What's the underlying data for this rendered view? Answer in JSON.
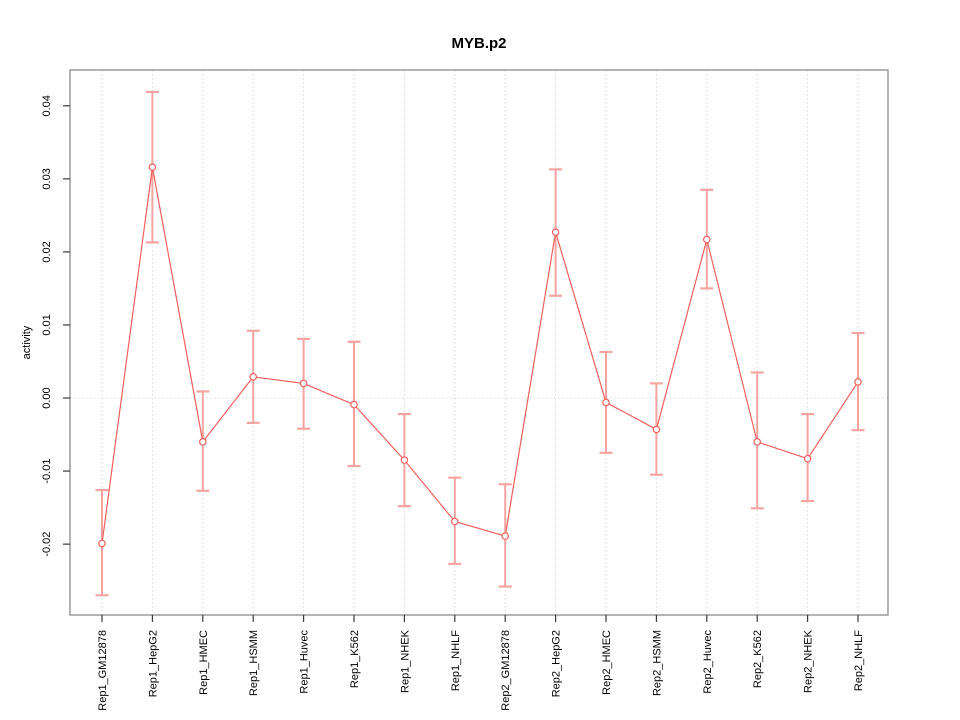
{
  "figure": {
    "kind": "R-style line plot with error bars",
    "background": "#ffffff"
  },
  "chart_data": {
    "type": "line",
    "title": "MYB.p2",
    "xlabel": "",
    "ylabel": "activity",
    "legend": "none",
    "grid": {
      "vertical_dotted_per_category": true,
      "zero_line_dotted": true
    },
    "ylim": [
      -0.0297,
      0.0449
    ],
    "yticks": [
      0.04,
      0.03,
      0.02,
      0.01,
      0.0,
      -0.01,
      -0.02
    ],
    "ytick_labels": [
      "0.04",
      "0.03",
      "0.02",
      "0.01",
      "0.00",
      "-0.01",
      "-0.02"
    ],
    "categories": [
      "Rep1_GM12878",
      "Rep1_HepG2",
      "Rep1_HMEC",
      "Rep1_HSMM",
      "Rep1_Huvec",
      "Rep1_K562",
      "Rep1_NHEK",
      "Rep1_NHLF",
      "Rep2_GM12878",
      "Rep2_HepG2",
      "Rep2_HMEC",
      "Rep2_HSMM",
      "Rep2_Huvec",
      "Rep2_K562",
      "Rep2_NHEK",
      "Rep2_NHLF"
    ],
    "values": [
      -0.0199,
      0.0316,
      -0.006,
      0.0029,
      0.002,
      -0.0009,
      -0.0085,
      -0.0169,
      -0.0189,
      0.0227,
      -0.0006,
      -0.0043,
      0.0217,
      -0.006,
      -0.0083,
      0.0022
    ],
    "error_low": [
      -0.027,
      0.0213,
      -0.0127,
      -0.0034,
      -0.0042,
      -0.0093,
      -0.0148,
      -0.0227,
      -0.0258,
      0.014,
      -0.0075,
      -0.0105,
      0.015,
      -0.0151,
      -0.0141,
      -0.0044
    ],
    "error_high": [
      -0.0126,
      0.0419,
      0.0009,
      0.0092,
      0.0081,
      0.0077,
      -0.0022,
      -0.0109,
      -0.0118,
      0.0313,
      0.0063,
      0.002,
      0.0285,
      0.0035,
      -0.0022,
      0.0089
    ],
    "colors": {
      "series_line": "#f4605c",
      "point_stroke": "#f4605c",
      "point_fill": "#ffffff",
      "error_bar": "#f5a4a1",
      "grid_line": "#d9d9d9",
      "box": "#8a8a8a",
      "tick": "#3a3a3a",
      "text": "#000000",
      "background": "#ffffff"
    }
  }
}
